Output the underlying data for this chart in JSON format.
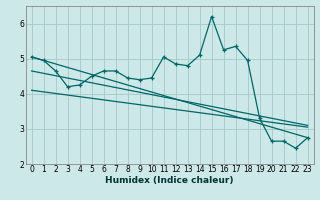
{
  "title": "",
  "xlabel": "Humidex (Indice chaleur)",
  "ylabel": "",
  "bg_color": "#cce8e8",
  "grid_color": "#aacccc",
  "line_color": "#006666",
  "xlim": [
    -0.5,
    23.5
  ],
  "ylim": [
    2,
    6.5
  ],
  "xticks": [
    0,
    1,
    2,
    3,
    4,
    5,
    6,
    7,
    8,
    9,
    10,
    11,
    12,
    13,
    14,
    15,
    16,
    17,
    18,
    19,
    20,
    21,
    22,
    23
  ],
  "yticks": [
    2,
    3,
    4,
    5,
    6
  ],
  "main_line": [
    [
      0,
      5.05
    ],
    [
      1,
      4.95
    ],
    [
      2,
      4.65
    ],
    [
      3,
      4.2
    ],
    [
      4,
      4.25
    ],
    [
      5,
      4.5
    ],
    [
      6,
      4.65
    ],
    [
      7,
      4.65
    ],
    [
      8,
      4.45
    ],
    [
      9,
      4.4
    ],
    [
      10,
      4.45
    ],
    [
      11,
      5.05
    ],
    [
      12,
      4.85
    ],
    [
      13,
      4.8
    ],
    [
      14,
      5.1
    ],
    [
      15,
      6.2
    ],
    [
      16,
      5.25
    ],
    [
      17,
      5.35
    ],
    [
      18,
      4.95
    ],
    [
      19,
      3.3
    ],
    [
      20,
      2.65
    ],
    [
      21,
      2.65
    ],
    [
      22,
      2.45
    ],
    [
      23,
      2.75
    ]
  ],
  "trend_line1": [
    [
      0,
      5.05
    ],
    [
      23,
      2.75
    ]
  ],
  "trend_line2": [
    [
      0,
      4.65
    ],
    [
      23,
      3.1
    ]
  ],
  "trend_line3": [
    [
      0,
      4.1
    ],
    [
      23,
      3.05
    ]
  ]
}
